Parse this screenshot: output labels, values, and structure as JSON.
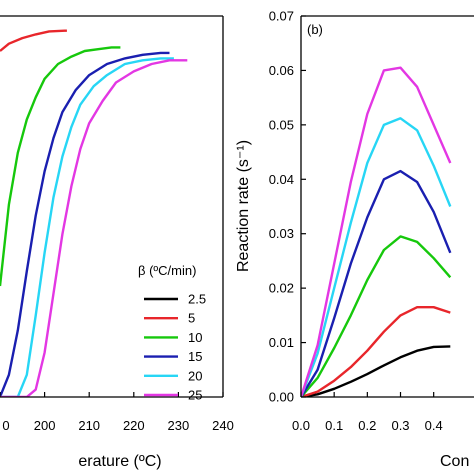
{
  "chart_data": [
    {
      "type": "line",
      "title": "",
      "xlabel": "erature (ºC)",
      "ylabel": "",
      "xlim": [
        190,
        240
      ],
      "x_ticks": [
        "0",
        "200",
        "210",
        "220",
        "230",
        "240"
      ],
      "legend": {
        "title": "β (ºC/min)",
        "placement": "bottom-right"
      },
      "series": [
        {
          "name": "2.5",
          "color": "#000000",
          "x": [],
          "y": []
        },
        {
          "name": "5",
          "color": "#e8262b",
          "x": [
            190,
            192,
            195,
            198,
            201,
            204.5,
            205
          ],
          "y": [
            0.935,
            0.955,
            0.97,
            0.98,
            0.988,
            0.99,
            0.99
          ]
        },
        {
          "name": "10",
          "color": "#16c80c",
          "x": [
            190,
            192,
            194,
            196,
            198,
            200,
            203,
            206,
            209,
            212,
            215,
            217
          ],
          "y": [
            0.3,
            0.52,
            0.66,
            0.75,
            0.81,
            0.86,
            0.9,
            0.92,
            0.935,
            0.94,
            0.945,
            0.945
          ]
        },
        {
          "name": "15",
          "color": "#1a1fb0",
          "x": [
            190,
            192,
            194,
            196,
            198,
            200,
            202,
            204,
            207,
            210,
            214,
            218,
            222,
            226,
            228
          ],
          "y": [
            0.0,
            0.06,
            0.18,
            0.34,
            0.49,
            0.61,
            0.7,
            0.77,
            0.83,
            0.87,
            0.9,
            0.915,
            0.925,
            0.93,
            0.93
          ]
        },
        {
          "name": "20",
          "color": "#27d6f5",
          "x": [
            190,
            192,
            194,
            196,
            198,
            200,
            202,
            204,
            206,
            208,
            211,
            214,
            218,
            222,
            226,
            229
          ],
          "y": [
            0.0,
            0.0,
            0.0,
            0.06,
            0.22,
            0.39,
            0.54,
            0.65,
            0.73,
            0.79,
            0.84,
            0.87,
            0.9,
            0.91,
            0.915,
            0.915
          ]
        },
        {
          "name": "25",
          "color": "#e337e3",
          "x": [
            190,
            194,
            196,
            198,
            200,
            202,
            204,
            206,
            208,
            210,
            213,
            216,
            220,
            224,
            228,
            232
          ],
          "y": [
            0.0,
            0.0,
            0.0,
            0.02,
            0.12,
            0.28,
            0.44,
            0.57,
            0.67,
            0.74,
            0.8,
            0.85,
            0.88,
            0.9,
            0.91,
            0.91
          ]
        }
      ]
    },
    {
      "type": "line",
      "title": "",
      "panel_label": "(b)",
      "xlabel": "Con",
      "ylabel": "Reaction rate (s⁻¹)",
      "xlim": [
        0.0,
        0.4
      ],
      "ylim": [
        0.0,
        0.07
      ],
      "x_ticks": [
        "0.0",
        "0.1",
        "0.2",
        "0.3",
        "0.4"
      ],
      "y_ticks": [
        "0.00",
        "0.01",
        "0.02",
        "0.03",
        "0.04",
        "0.05",
        "0.06",
        "0.07"
      ],
      "series": [
        {
          "name": "2.5",
          "color": "#000000",
          "x": [
            0.0,
            0.05,
            0.1,
            0.15,
            0.2,
            0.25,
            0.3,
            0.35,
            0.4,
            0.45
          ],
          "y": [
            0.0,
            0.0005,
            0.0015,
            0.0028,
            0.0042,
            0.0058,
            0.0073,
            0.0085,
            0.0092,
            0.0093
          ]
        },
        {
          "name": "5",
          "color": "#e8262b",
          "x": [
            0.0,
            0.05,
            0.1,
            0.15,
            0.2,
            0.25,
            0.3,
            0.35,
            0.4,
            0.45
          ],
          "y": [
            0.0,
            0.001,
            0.003,
            0.0055,
            0.0085,
            0.012,
            0.015,
            0.0165,
            0.0165,
            0.0155
          ]
        },
        {
          "name": "10",
          "color": "#16c80c",
          "x": [
            0.0,
            0.05,
            0.1,
            0.15,
            0.2,
            0.25,
            0.3,
            0.35,
            0.4,
            0.45
          ],
          "y": [
            0.0,
            0.0035,
            0.009,
            0.015,
            0.0215,
            0.027,
            0.0295,
            0.0285,
            0.0255,
            0.022
          ]
        },
        {
          "name": "15",
          "color": "#1a1fb0",
          "x": [
            0.0,
            0.05,
            0.1,
            0.15,
            0.2,
            0.25,
            0.3,
            0.35,
            0.4,
            0.45
          ],
          "y": [
            0.0,
            0.005,
            0.0145,
            0.0245,
            0.033,
            0.04,
            0.0415,
            0.0395,
            0.034,
            0.0265
          ]
        },
        {
          "name": "20",
          "color": "#27d6f5",
          "x": [
            0.0,
            0.05,
            0.1,
            0.15,
            0.2,
            0.25,
            0.3,
            0.35,
            0.4,
            0.45
          ],
          "y": [
            0.0,
            0.008,
            0.02,
            0.032,
            0.043,
            0.05,
            0.0512,
            0.049,
            0.0425,
            0.035
          ]
        },
        {
          "name": "25",
          "color": "#e337e3",
          "x": [
            0.0,
            0.05,
            0.1,
            0.15,
            0.2,
            0.25,
            0.3,
            0.35,
            0.4,
            0.45
          ],
          "y": [
            0.0,
            0.0095,
            0.0245,
            0.0395,
            0.052,
            0.06,
            0.0605,
            0.057,
            0.05,
            0.043
          ]
        }
      ]
    }
  ]
}
